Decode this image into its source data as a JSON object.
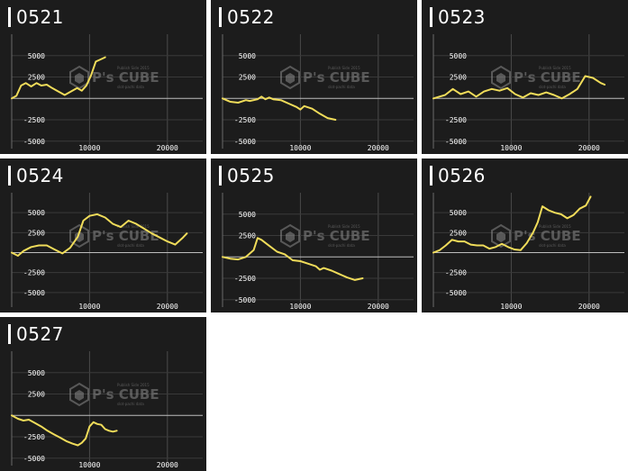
{
  "watermark": {
    "brand": "P's CUBE",
    "small_top": "Publish Side 2015",
    "small_bottom": "slot-pachi data",
    "color": "#8a8a8a"
  },
  "line_color": "#f0dc5a",
  "chart_data": [
    {
      "type": "line",
      "title": "0521",
      "ylim": [
        -6500,
        7500
      ],
      "xlim": [
        0,
        25000
      ],
      "yticks": [
        5000,
        2500,
        -2500,
        -5000
      ],
      "xticks": [
        10000,
        20000
      ],
      "x": [
        0,
        600,
        1200,
        1800,
        2500,
        3200,
        3800,
        4500,
        5200,
        6000,
        6800,
        7600,
        8400,
        9000,
        9600,
        10200,
        10800,
        11500,
        12000
      ],
      "y": [
        0,
        300,
        1500,
        1800,
        1400,
        1800,
        1500,
        1600,
        1200,
        800,
        400,
        800,
        1200,
        900,
        1500,
        2700,
        4300,
        4600,
        4800
      ]
    },
    {
      "type": "line",
      "title": "0522",
      "ylim": [
        -6500,
        7500
      ],
      "xlim": [
        0,
        25000
      ],
      "yticks": [
        5000,
        2500,
        -2500,
        -5000
      ],
      "xticks": [
        10000,
        20000
      ],
      "x": [
        0,
        1000,
        2000,
        3000,
        3500,
        4500,
        5000,
        5500,
        6000,
        6500,
        7500,
        8500,
        9500,
        10000,
        10500,
        11500,
        12500,
        13500,
        14500
      ],
      "y": [
        0,
        -400,
        -500,
        -200,
        -300,
        -100,
        200,
        -100,
        100,
        -100,
        -200,
        -600,
        -1000,
        -1300,
        -900,
        -1200,
        -1800,
        -2300,
        -2500
      ]
    },
    {
      "type": "line",
      "title": "0523",
      "ylim": [
        -6500,
        7500
      ],
      "xlim": [
        0,
        25000
      ],
      "yticks": [
        5000,
        2500,
        -2500,
        -5000
      ],
      "xticks": [
        10000,
        20000
      ],
      "x": [
        0,
        1500,
        2500,
        3500,
        4500,
        5500,
        6500,
        7500,
        8500,
        9500,
        10500,
        11500,
        12500,
        13500,
        14500,
        15500,
        16500,
        17500,
        18500,
        19500,
        20500,
        21500,
        22000
      ],
      "y": [
        0,
        400,
        1100,
        500,
        800,
        200,
        800,
        1100,
        900,
        1200,
        500,
        100,
        600,
        400,
        700,
        400,
        0,
        500,
        1100,
        2600,
        2400,
        1800,
        1600
      ]
    },
    {
      "type": "line",
      "title": "0524",
      "ylim": [
        -7500,
        7500
      ],
      "xlim": [
        0,
        25000
      ],
      "yticks": [
        5000,
        2500,
        -2500,
        -5000
      ],
      "xticks": [
        10000,
        20000
      ],
      "x": [
        0,
        800,
        1500,
        2500,
        3500,
        4500,
        5500,
        6500,
        7500,
        8500,
        9200,
        10000,
        11000,
        12000,
        13000,
        14000,
        15000,
        16000,
        17000,
        18000,
        19000,
        20000,
        21000,
        22000,
        22500
      ],
      "y": [
        0,
        -400,
        200,
        700,
        900,
        900,
        400,
        -100,
        600,
        2000,
        4000,
        4600,
        4800,
        4400,
        3600,
        3200,
        4000,
        3600,
        3000,
        2400,
        1900,
        1400,
        1000,
        1900,
        2400
      ]
    },
    {
      "type": "line",
      "title": "0525",
      "ylim": [
        -6500,
        7500
      ],
      "xlim": [
        0,
        25000
      ],
      "yticks": [
        5000,
        2500,
        -2500,
        -5000
      ],
      "xticks": [
        10000,
        20000
      ],
      "x": [
        0,
        1000,
        2000,
        3000,
        4000,
        4500,
        5000,
        6000,
        7000,
        8000,
        9000,
        10000,
        11000,
        12000,
        12500,
        13000,
        14000,
        15000,
        16000,
        17000,
        18000
      ],
      "y": [
        0,
        -200,
        -300,
        0,
        800,
        2200,
        2000,
        1300,
        600,
        300,
        -400,
        -500,
        -800,
        -1100,
        -1500,
        -1300,
        -1600,
        -2000,
        -2400,
        -2700,
        -2500
      ]
    },
    {
      "type": "line",
      "title": "0526",
      "ylim": [
        -7500,
        7500
      ],
      "xlim": [
        0,
        25000
      ],
      "yticks": [
        5000,
        2500,
        -2500,
        -5000
      ],
      "xticks": [
        10000,
        20000
      ],
      "x": [
        0,
        800,
        1600,
        2400,
        3200,
        4000,
        4800,
        5600,
        6400,
        7200,
        8000,
        8800,
        9600,
        10400,
        11200,
        12000,
        12800,
        13400,
        14000,
        14800,
        15600,
        16400,
        17200,
        18000,
        18800,
        19600,
        20200
      ],
      "y": [
        0,
        300,
        900,
        1600,
        1400,
        1400,
        1000,
        900,
        900,
        500,
        700,
        1100,
        700,
        400,
        300,
        1200,
        2500,
        3800,
        5800,
        5300,
        5000,
        4800,
        4300,
        4700,
        5500,
        5900,
        7000
      ]
    },
    {
      "type": "line",
      "title": "0527",
      "ylim": [
        -6500,
        7500
      ],
      "xlim": [
        0,
        25000
      ],
      "yticks": [
        5000,
        2500,
        -2500,
        -5000
      ],
      "xticks": [
        10000,
        20000
      ],
      "x": [
        0,
        800,
        1500,
        2200,
        3000,
        3800,
        4600,
        5400,
        6200,
        7000,
        7800,
        8500,
        9000,
        9500,
        10000,
        10500,
        11000,
        11500,
        12000,
        12500,
        13000,
        13500
      ],
      "y": [
        0,
        -400,
        -600,
        -500,
        -900,
        -1300,
        -1800,
        -2200,
        -2600,
        -3000,
        -3300,
        -3500,
        -3200,
        -2700,
        -1300,
        -800,
        -1000,
        -1100,
        -1600,
        -1800,
        -1900,
        -1800
      ]
    }
  ]
}
